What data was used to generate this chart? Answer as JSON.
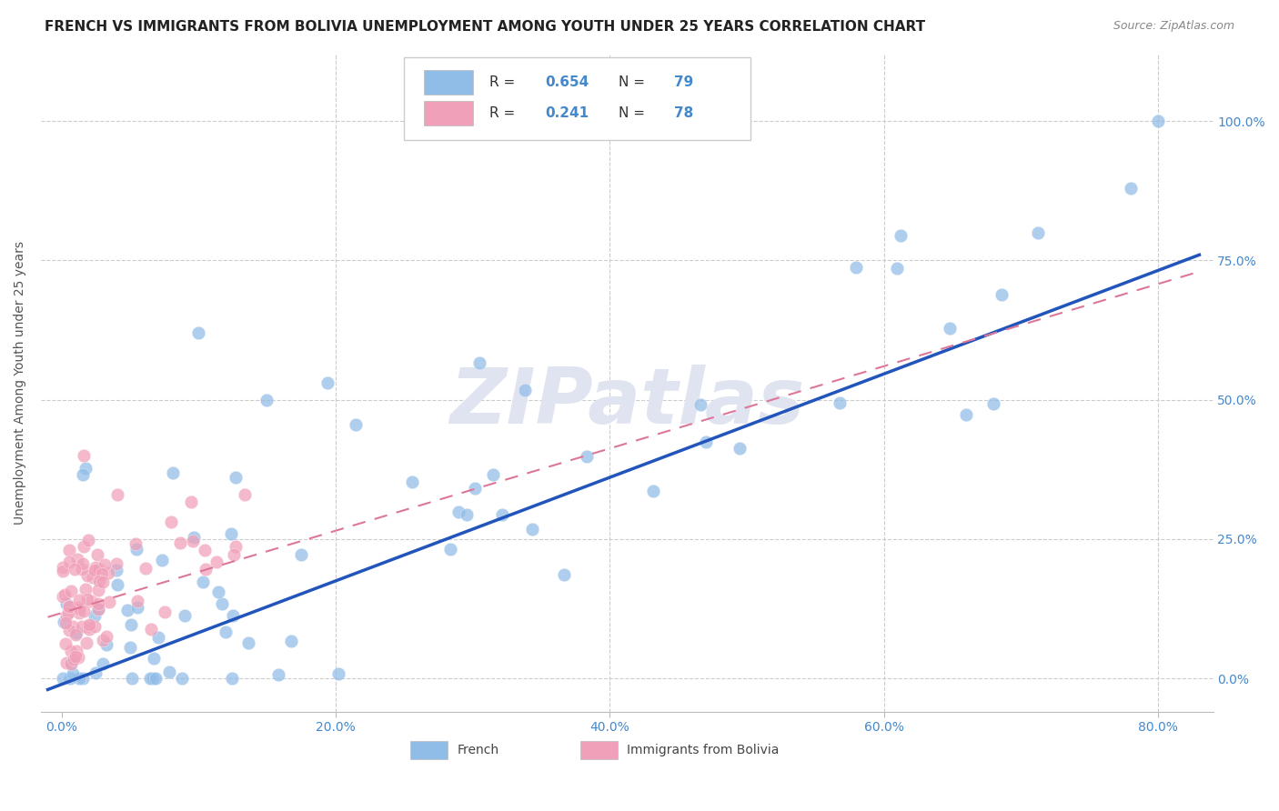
{
  "title": "FRENCH VS IMMIGRANTS FROM BOLIVIA UNEMPLOYMENT AMONG YOUTH UNDER 25 YEARS CORRELATION CHART",
  "source": "Source: ZipAtlas.com",
  "ylabel": "Unemployment Among Youth under 25 years",
  "xlabel_values": [
    0.0,
    0.2,
    0.4,
    0.6,
    0.8
  ],
  "xlabel_labels": [
    "0.0%",
    "20.0%",
    "40.0%",
    "60.0%",
    "80.0%"
  ],
  "ylabel_values": [
    0.0,
    0.25,
    0.5,
    0.75,
    1.0
  ],
  "ylabel_labels": [
    "0.0%",
    "25.0%",
    "50.0%",
    "75.0%",
    "100.0%"
  ],
  "xlim": [
    -0.015,
    0.84
  ],
  "ylim": [
    -0.06,
    1.12
  ],
  "title_fontsize": 11,
  "source_fontsize": 9,
  "axis_tick_color": "#4488cc",
  "grid_color": "#cccccc",
  "scatter_blue_color": "#90bce8",
  "scatter_pink_color": "#f0a0b8",
  "line_blue_color": "#2255bb",
  "line_pink_color": "#dd7799",
  "watermark_color": "#e0e4f0",
  "watermark_fontsize": 62,
  "legend_R_blue": "0.654",
  "legend_N_blue": "79",
  "legend_R_pink": "0.241",
  "legend_N_pink": "78",
  "legend_label_blue": "French",
  "legend_label_pink": "Immigrants from Bolivia"
}
